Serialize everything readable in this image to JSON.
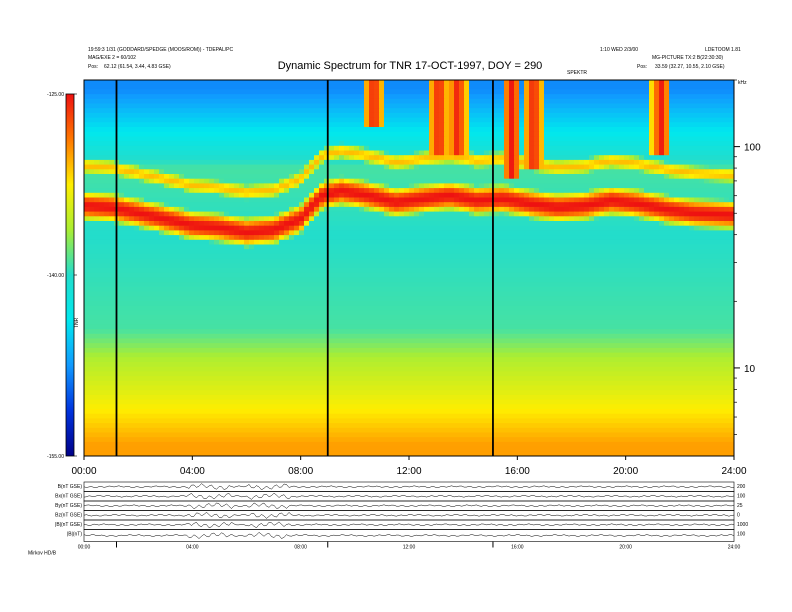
{
  "header": {
    "left_line1": "19:59:3 1/31 (GODDARD/SPEDGE (MOOS/ROM)) - TDEPAL/PC",
    "left_line2": "MAG/EXE 2 = 60/102",
    "left_line3": "Pos:",
    "left_line3_value": "62.12 (61.54, 3.44, 4.83 GSE)",
    "right_line1": "1:10 WED 2/3/00",
    "right_line1b": "LDETOOM 1.81",
    "right_line2": "MG-PICTURE TX:2 B(22:30:30)",
    "right_line3": "Pos:",
    "right_line3_value": "33.59 (32.27, 10.55, 2.10 GSE)",
    "title": "Dynamic Spectrum for TNR 17-OCT-1997, DOY = 290",
    "right_tag": "SPEKTR",
    "right_unit": "kHz"
  },
  "colorbar": {
    "axis_label": "TNR",
    "ticks": [
      "-125.00",
      "-140.00",
      "-155.00"
    ],
    "colors": [
      "#ee1111",
      "#ff7700",
      "#ffee00",
      "#aaee33",
      "#22ddcc",
      "#00e8ee",
      "#1199ff",
      "#0033dd",
      "#000088"
    ]
  },
  "chart_data": {
    "type": "heatmap",
    "title": "Dynamic Spectrum for TNR 17-OCT-1997, DOY = 290",
    "x_ticks": [
      "00:00",
      "04:00",
      "08:00",
      "12:00",
      "16:00",
      "20:00",
      "24:00"
    ],
    "x_range_hours": [
      0,
      24
    ],
    "y_unit": "kHz",
    "y_scale": "log",
    "y_ticks": [
      100,
      10
    ],
    "y_range_khz": [
      4,
      200
    ],
    "z_range": [
      -155,
      -125
    ],
    "background_spectrum": [
      {
        "f_khz": 4.5,
        "level": -130
      },
      {
        "f_khz": 6,
        "level": -132
      },
      {
        "f_khz": 8,
        "level": -134
      },
      {
        "f_khz": 11,
        "level": -136
      },
      {
        "f_khz": 15,
        "level": -139
      },
      {
        "f_khz": 40,
        "level": -140
      },
      {
        "f_khz": 80,
        "level": -139
      },
      {
        "f_khz": 120,
        "level": -144
      },
      {
        "f_khz": 180,
        "level": -148
      }
    ],
    "plasma_line": [
      {
        "t": 0.0,
        "f_khz": 54
      },
      {
        "t": 1.0,
        "f_khz": 53
      },
      {
        "t": 2.0,
        "f_khz": 50
      },
      {
        "t": 3.0,
        "f_khz": 47
      },
      {
        "t": 4.0,
        "f_khz": 44
      },
      {
        "t": 5.0,
        "f_khz": 43
      },
      {
        "t": 6.0,
        "f_khz": 41
      },
      {
        "t": 7.0,
        "f_khz": 42
      },
      {
        "t": 8.0,
        "f_khz": 47
      },
      {
        "t": 8.8,
        "f_khz": 60
      },
      {
        "t": 9.5,
        "f_khz": 63
      },
      {
        "t": 10.5,
        "f_khz": 60
      },
      {
        "t": 11.5,
        "f_khz": 56
      },
      {
        "t": 12.5,
        "f_khz": 58
      },
      {
        "t": 13.5,
        "f_khz": 60
      },
      {
        "t": 14.5,
        "f_khz": 57
      },
      {
        "t": 15.5,
        "f_khz": 58
      },
      {
        "t": 16.5,
        "f_khz": 55
      },
      {
        "t": 17.5,
        "f_khz": 53
      },
      {
        "t": 18.5,
        "f_khz": 54
      },
      {
        "t": 19.5,
        "f_khz": 57
      },
      {
        "t": 20.5,
        "f_khz": 55
      },
      {
        "t": 21.5,
        "f_khz": 52
      },
      {
        "t": 22.5,
        "f_khz": 50
      },
      {
        "t": 24.0,
        "f_khz": 49
      }
    ],
    "bursts": [
      {
        "t": 10.7,
        "f_low_khz": 120,
        "f_high_khz": 200
      },
      {
        "t": 13.1,
        "f_low_khz": 90,
        "f_high_khz": 200
      },
      {
        "t": 13.8,
        "f_low_khz": 90,
        "f_high_khz": 200
      },
      {
        "t": 15.8,
        "f_low_khz": 70,
        "f_high_khz": 200
      },
      {
        "t": 16.6,
        "f_low_khz": 80,
        "f_high_khz": 200
      },
      {
        "t": 21.3,
        "f_low_khz": 90,
        "f_high_khz": 200
      }
    ],
    "marker_lines_hours": [
      1.2,
      9.0,
      15.1
    ]
  },
  "bottom_panels": {
    "labels": [
      "B(nT GSE)",
      "Bx(nT GSE)",
      "By(nT GSE)",
      "Bz(nT GSE)",
      "|B|(nT GSE)",
      "|B|(nT)"
    ],
    "right_ticks": [
      "200",
      "100",
      "25",
      "0",
      "1000",
      "100"
    ],
    "time_ticks": [
      "00:00",
      "04:00",
      "08:00",
      "12:00",
      "16:00",
      "20:00",
      "24:00"
    ],
    "footer_label": "Mirkov HD/B"
  }
}
